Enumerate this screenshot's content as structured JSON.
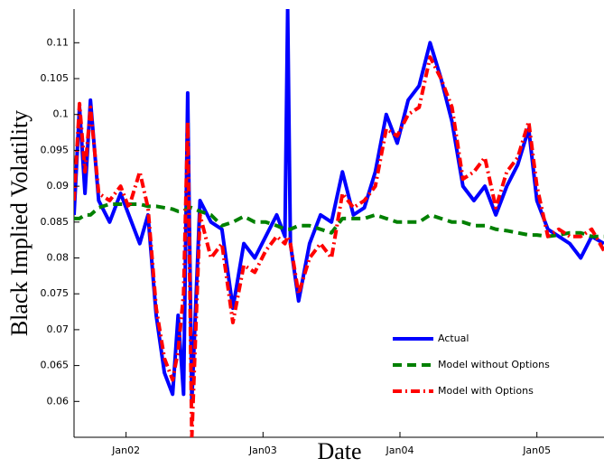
{
  "chart_data": {
    "type": "line",
    "x_label": "Date",
    "y_label": "Black Implied Volatility",
    "x": [
      2001.62,
      2001.66,
      2001.7,
      2001.74,
      2001.8,
      2001.88,
      2001.96,
      2002.02,
      2002.1,
      2002.16,
      2002.22,
      2002.28,
      2002.34,
      2002.38,
      2002.42,
      2002.45,
      2002.48,
      2002.54,
      2002.62,
      2002.7,
      2002.78,
      2002.86,
      2002.94,
      2003.02,
      2003.1,
      2003.16,
      2003.18,
      2003.2,
      2003.26,
      2003.34,
      2003.42,
      2003.5,
      2003.58,
      2003.66,
      2003.74,
      2003.82,
      2003.9,
      2003.98,
      2004.06,
      2004.14,
      2004.22,
      2004.3,
      2004.38,
      2004.46,
      2004.54,
      2004.62,
      2004.7,
      2004.78,
      2004.86,
      2004.94,
      2005.0,
      2005.08,
      2005.16,
      2005.24,
      2005.32,
      2005.4,
      2005.49
    ],
    "series": [
      {
        "name": "Actual",
        "color": "#0000ff",
        "dash": "solid",
        "values": [
          0.086,
          0.101,
          0.089,
          0.102,
          0.088,
          0.085,
          0.089,
          0.086,
          0.082,
          0.086,
          0.072,
          0.064,
          0.061,
          0.072,
          0.061,
          0.103,
          0.06,
          0.088,
          0.085,
          0.084,
          0.073,
          0.082,
          0.08,
          0.083,
          0.086,
          0.083,
          0.1147,
          0.082,
          0.074,
          0.082,
          0.086,
          0.085,
          0.092,
          0.086,
          0.087,
          0.092,
          0.1,
          0.096,
          0.102,
          0.104,
          0.11,
          0.105,
          0.099,
          0.09,
          0.088,
          0.09,
          0.086,
          0.09,
          0.093,
          0.098,
          0.088,
          0.084,
          0.083,
          0.082,
          0.08,
          0.083,
          0.082
        ]
      },
      {
        "name": "Model without Options",
        "color": "#008000",
        "dash": "dashed",
        "values": [
          0.0855,
          0.0855,
          0.086,
          0.086,
          0.087,
          0.0875,
          0.0875,
          0.0875,
          0.0875,
          0.0872,
          0.0872,
          0.087,
          0.0868,
          0.0865,
          0.0865,
          0.087,
          0.087,
          0.0865,
          0.086,
          0.0845,
          0.085,
          0.0858,
          0.085,
          0.085,
          0.0845,
          0.084,
          0.084,
          0.084,
          0.0845,
          0.0845,
          0.084,
          0.0835,
          0.0855,
          0.0855,
          0.0855,
          0.086,
          0.0855,
          0.085,
          0.085,
          0.085,
          0.086,
          0.0855,
          0.085,
          0.085,
          0.0845,
          0.0845,
          0.084,
          0.0838,
          0.0835,
          0.0832,
          0.0832,
          0.083,
          0.0832,
          0.0835,
          0.0835,
          0.083,
          0.083
        ]
      },
      {
        "name": "Model with Options",
        "color": "#ff0000",
        "dash": "dashdot",
        "values": [
          0.088,
          0.1015,
          0.092,
          0.101,
          0.089,
          0.088,
          0.09,
          0.087,
          0.092,
          0.087,
          0.073,
          0.066,
          0.063,
          0.067,
          0.075,
          0.099,
          0.055,
          0.086,
          0.08,
          0.082,
          0.071,
          0.079,
          0.078,
          0.081,
          0.083,
          0.082,
          0.083,
          0.082,
          0.075,
          0.08,
          0.082,
          0.08,
          0.089,
          0.087,
          0.088,
          0.09,
          0.098,
          0.097,
          0.1,
          0.101,
          0.108,
          0.105,
          0.101,
          0.091,
          0.092,
          0.094,
          0.087,
          0.092,
          0.094,
          0.099,
          0.09,
          0.083,
          0.084,
          0.083,
          0.083,
          0.084,
          0.081
        ]
      }
    ],
    "xlim": [
      2001.62,
      2005.49
    ],
    "xticks": [
      {
        "value": 2002,
        "label": "Jan02"
      },
      {
        "value": 2003,
        "label": "Jan03"
      },
      {
        "value": 2004,
        "label": "Jan04"
      },
      {
        "value": 2005,
        "label": "Jan05"
      }
    ],
    "ylim": [
      0.055,
      0.1147
    ],
    "yticks": [
      0.06,
      0.065,
      0.07,
      0.075,
      0.08,
      0.085,
      0.09,
      0.095,
      0.1,
      0.105,
      0.11
    ],
    "grid": false,
    "legend": "lower right"
  }
}
